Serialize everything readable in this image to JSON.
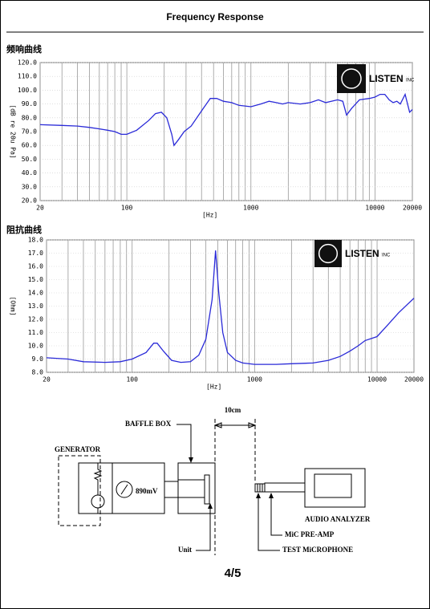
{
  "header": {
    "title": "Frequency   Response"
  },
  "logo": {
    "name": "LISTEN",
    "suffix": "INC"
  },
  "chart_data": [
    {
      "type": "line",
      "title": "频响曲线",
      "y_label": "[dB re 20u Pa]",
      "x_label": "[Hz]",
      "log_x": true,
      "grid": true,
      "xlim": [
        20,
        20000
      ],
      "xticks": [
        20,
        100,
        1000,
        10000,
        20000
      ],
      "xgrid": [
        30,
        40,
        50,
        60,
        70,
        80,
        90,
        200,
        300,
        400,
        500,
        600,
        700,
        800,
        900,
        2000,
        3000,
        4000,
        5000,
        6000,
        7000,
        8000,
        9000
      ],
      "ylim": [
        20,
        120
      ],
      "yticks": [
        {
          "value": 20,
          "label": "20.0"
        },
        {
          "value": 30,
          "label": "30.0"
        },
        {
          "value": 40,
          "label": "40.0"
        },
        {
          "value": 50,
          "label": "50.0"
        },
        {
          "value": 60,
          "label": "60.0"
        },
        {
          "value": 70,
          "label": "70.0"
        },
        {
          "value": 80,
          "label": "80.0"
        },
        {
          "value": 90,
          "label": "90.0"
        },
        {
          "value": 100,
          "label": "100.0"
        },
        {
          "value": 110,
          "label": "110.0"
        },
        {
          "value": 120,
          "label": "120.0"
        }
      ],
      "color": "#2a2ad8",
      "x": [
        20,
        30,
        40,
        50,
        60,
        70,
        80,
        90,
        100,
        120,
        150,
        170,
        190,
        210,
        230,
        240,
        260,
        290,
        330,
        400,
        470,
        530,
        600,
        700,
        800,
        1000,
        1200,
        1400,
        1600,
        1800,
        2000,
        2500,
        3000,
        3500,
        4000,
        5000,
        5500,
        5900,
        6500,
        7500,
        9000,
        10000,
        11000,
        12000,
        13000,
        14000,
        15000,
        16000,
        17500,
        19000,
        20000
      ],
      "values": [
        75,
        74.5,
        74,
        73,
        72,
        71,
        70,
        68,
        68,
        71,
        78,
        83,
        84,
        80,
        68,
        60,
        64,
        70,
        74,
        85,
        94,
        94,
        92,
        91,
        89,
        88,
        90,
        92,
        91,
        90,
        91,
        90,
        91,
        93,
        91,
        93,
        92,
        82,
        87,
        93,
        94,
        95,
        97,
        97,
        93,
        91,
        92,
        90,
        97,
        84,
        86
      ]
    },
    {
      "type": "line",
      "title": "阻抗曲线",
      "y_label": "[Ohm]",
      "x_label": "[Hz]",
      "log_x": true,
      "grid": true,
      "xlim": [
        20,
        20000
      ],
      "xticks": [
        20,
        100,
        1000,
        10000,
        20000
      ],
      "xgrid": [
        30,
        40,
        50,
        60,
        70,
        80,
        90,
        200,
        300,
        400,
        500,
        600,
        700,
        800,
        900,
        2000,
        3000,
        4000,
        5000,
        6000,
        7000,
        8000,
        9000
      ],
      "ylim": [
        8,
        18
      ],
      "yticks": [
        {
          "value": 8,
          "label": "8.0"
        },
        {
          "value": 9,
          "label": "9.0"
        },
        {
          "value": 10,
          "label": "10.0"
        },
        {
          "value": 11,
          "label": "11.0"
        },
        {
          "value": 12,
          "label": "12.0"
        },
        {
          "value": 13,
          "label": "13.0"
        },
        {
          "value": 14,
          "label": "14.0"
        },
        {
          "value": 15,
          "label": "15.0"
        },
        {
          "value": 16,
          "label": "16.0"
        },
        {
          "value": 17,
          "label": "17.0"
        },
        {
          "value": 18,
          "label": "18.0"
        }
      ],
      "color": "#2a2ad8",
      "x": [
        20,
        30,
        40,
        60,
        80,
        100,
        130,
        150,
        160,
        180,
        210,
        250,
        300,
        350,
        400,
        450,
        480,
        510,
        550,
        600,
        700,
        800,
        1000,
        1500,
        2000,
        3000,
        4000,
        5000,
        6000,
        7000,
        8000,
        10000,
        12000,
        15000,
        20000
      ],
      "values": [
        9.1,
        9.0,
        8.8,
        8.75,
        8.8,
        9.0,
        9.5,
        10.2,
        10.2,
        9.6,
        8.9,
        8.75,
        8.8,
        9.3,
        10.5,
        13.5,
        17.2,
        14,
        11,
        9.5,
        8.9,
        8.7,
        8.6,
        8.6,
        8.65,
        8.7,
        8.9,
        9.2,
        9.6,
        10.0,
        10.4,
        10.7,
        11.5,
        12.5,
        13.6
      ]
    }
  ],
  "diagram": {
    "distance": "10cm",
    "baffle": "BAFFLE BOX",
    "generator": "GENERATOR",
    "voltage": "890mV",
    "unit": "Unit",
    "analyzer": "AUDIO ANALYZER",
    "preamp": "MiC PRE-AMP",
    "microphone": "TEST MiCROPHONE"
  },
  "footer": {
    "page": "4/5"
  }
}
